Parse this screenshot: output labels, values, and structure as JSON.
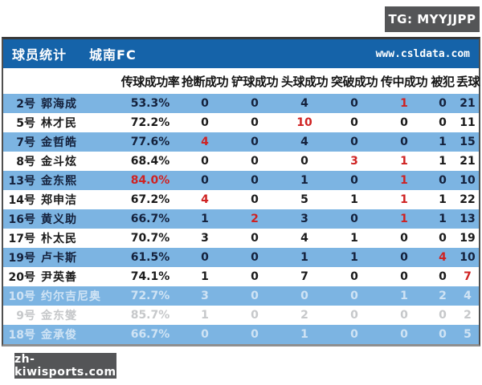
{
  "badges": {
    "tg": "TG: MYYJJPP",
    "site": "zh-kiwisports.com"
  },
  "titlebar": {
    "title": "球员统计",
    "team": "城南FC",
    "url": "www.csldata.com"
  },
  "chart_data": {
    "type": "table",
    "title": "球员统计 城南FC",
    "columns": [
      "传球成功率",
      "抢断成功",
      "铲球成功",
      "头球成功",
      "突破成功",
      "传中成功",
      "被犯",
      "丢球"
    ],
    "rows": [
      {
        "jersey": "2号",
        "name": "郭海成",
        "values": [
          "53.3%",
          "0",
          "0",
          "4",
          "0",
          "1",
          "0",
          "21"
        ],
        "red": [
          5
        ],
        "faded": false
      },
      {
        "jersey": "5号",
        "name": "林才民",
        "values": [
          "72.2%",
          "0",
          "0",
          "10",
          "0",
          "0",
          "0",
          "11"
        ],
        "red": [
          3
        ],
        "faded": false
      },
      {
        "jersey": "7号",
        "name": "金哲皓",
        "values": [
          "77.6%",
          "4",
          "0",
          "4",
          "0",
          "0",
          "1",
          "15"
        ],
        "red": [
          1
        ],
        "faded": false
      },
      {
        "jersey": "8号",
        "name": "金斗炫",
        "values": [
          "68.4%",
          "0",
          "0",
          "0",
          "3",
          "1",
          "1",
          "21"
        ],
        "red": [
          4,
          5
        ],
        "faded": false
      },
      {
        "jersey": "13号",
        "name": "金东熙",
        "values": [
          "84.0%",
          "0",
          "0",
          "1",
          "0",
          "1",
          "0",
          "10"
        ],
        "red": [
          0,
          5
        ],
        "faded": false
      },
      {
        "jersey": "14号",
        "name": "郑申洁",
        "values": [
          "67.2%",
          "4",
          "0",
          "5",
          "1",
          "1",
          "1",
          "22"
        ],
        "red": [
          1,
          5
        ],
        "faded": false
      },
      {
        "jersey": "16号",
        "name": "黄义助",
        "values": [
          "66.7%",
          "1",
          "2",
          "3",
          "0",
          "1",
          "1",
          "13"
        ],
        "red": [
          2,
          5
        ],
        "faded": false
      },
      {
        "jersey": "17号",
        "name": "朴太民",
        "values": [
          "70.7%",
          "3",
          "0",
          "4",
          "1",
          "0",
          "0",
          "19"
        ],
        "red": [],
        "faded": false
      },
      {
        "jersey": "19号",
        "name": "卢卡斯",
        "values": [
          "61.5%",
          "0",
          "0",
          "1",
          "1",
          "0",
          "4",
          "10"
        ],
        "red": [
          6
        ],
        "faded": false
      },
      {
        "jersey": "20号",
        "name": "尹英善",
        "values": [
          "74.1%",
          "1",
          "0",
          "7",
          "0",
          "0",
          "0",
          "7"
        ],
        "red": [
          7
        ],
        "faded": false
      },
      {
        "jersey": "10号",
        "name": "约尔吉尼奥",
        "values": [
          "72.7%",
          "3",
          "0",
          "0",
          "0",
          "1",
          "2",
          "4"
        ],
        "red": [],
        "faded": true
      },
      {
        "jersey": "9号",
        "name": "金东燮",
        "values": [
          "85.7%",
          "1",
          "0",
          "2",
          "0",
          "0",
          "0",
          "2"
        ],
        "red": [],
        "faded": true
      },
      {
        "jersey": "18号",
        "name": "金承俊",
        "values": [
          "66.7%",
          "0",
          "0",
          "1",
          "0",
          "0",
          "0",
          "5"
        ],
        "red": [],
        "faded": true
      }
    ]
  },
  "colors": {
    "accent_red": "#cf2222",
    "row_blue": "#7cb4e2",
    "header_blue": "#1563a9",
    "badge_gray": "#545557"
  }
}
